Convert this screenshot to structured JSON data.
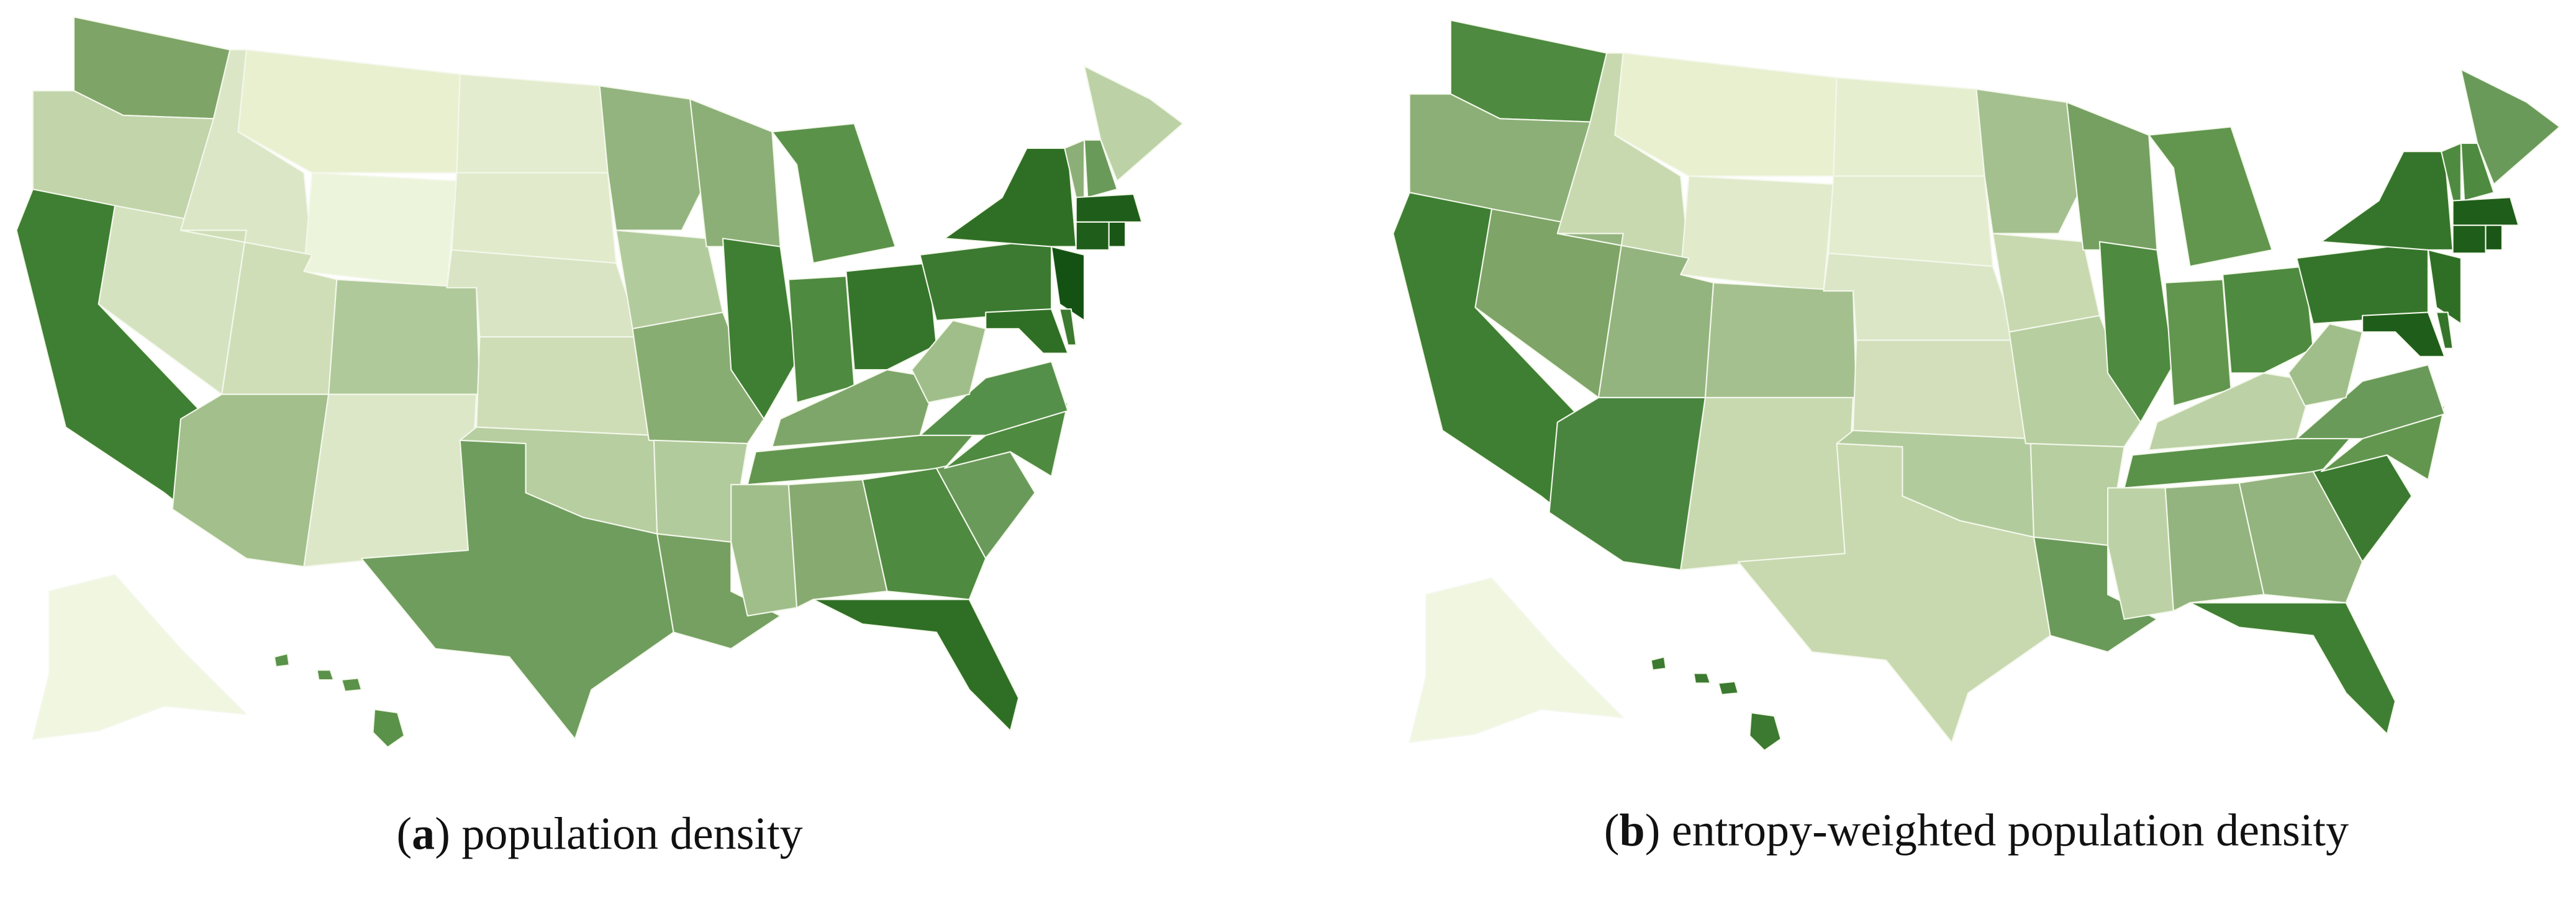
{
  "panels": [
    {
      "open": "(",
      "label": "a",
      "rest": ") population density"
    },
    {
      "open": "(",
      "label": "b",
      "rest": ") entropy-weighted population density"
    }
  ]
}
